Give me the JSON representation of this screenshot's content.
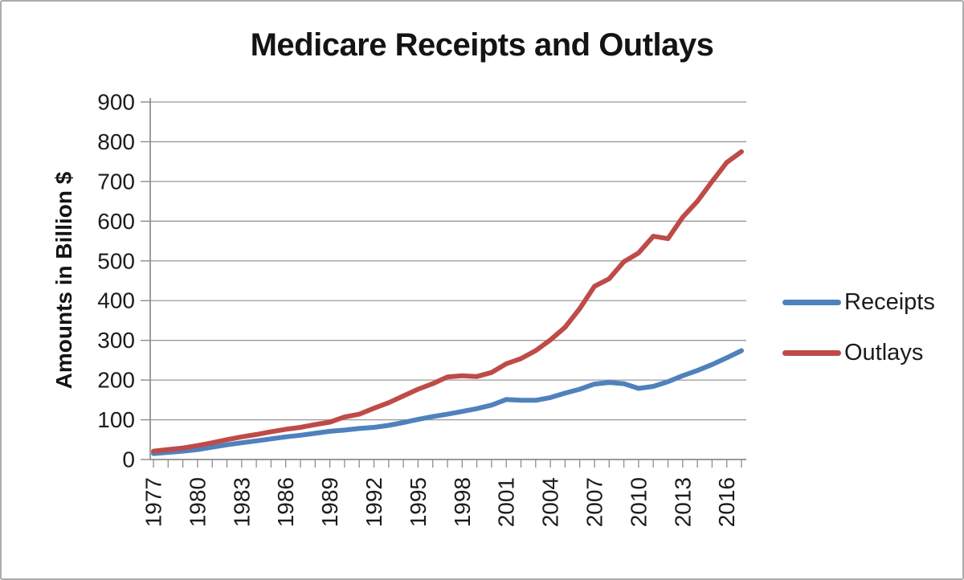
{
  "chart_data": {
    "type": "line",
    "title": "Medicare Receipts and Outlays",
    "xlabel": "",
    "ylabel": "Amounts in Billion $",
    "ylim": [
      0,
      900
    ],
    "yticks": [
      0,
      100,
      200,
      300,
      400,
      500,
      600,
      700,
      800,
      900
    ],
    "xtick_label_years": [
      1977,
      1980,
      1983,
      1986,
      1989,
      1992,
      1995,
      1998,
      2001,
      2004,
      2007,
      2010,
      2013,
      2016
    ],
    "grid": "horizontal",
    "legend_position": "right",
    "x": [
      1977,
      1978,
      1979,
      1980,
      1981,
      1982,
      1983,
      1984,
      1985,
      1986,
      1987,
      1988,
      1989,
      1990,
      1991,
      1992,
      1993,
      1994,
      1995,
      1996,
      1997,
      1998,
      1999,
      2000,
      2001,
      2002,
      2003,
      2004,
      2005,
      2006,
      2007,
      2008,
      2009,
      2010,
      2011,
      2012,
      2013,
      2014,
      2015,
      2016,
      2017
    ],
    "series": [
      {
        "name": "Receipts",
        "color": "#4F81BD",
        "values": [
          15,
          18,
          21,
          25,
          31,
          37,
          42,
          47,
          52,
          57,
          61,
          66,
          71,
          74,
          78,
          81,
          86,
          93,
          101,
          108,
          114,
          121,
          128,
          137,
          151,
          149,
          149,
          156,
          167,
          177,
          190,
          194,
          191,
          179,
          184,
          196,
          211,
          224,
          239,
          256,
          274
        ]
      },
      {
        "name": "Outlays",
        "color": "#BE4B48",
        "values": [
          21,
          25,
          29,
          35,
          42,
          50,
          57,
          63,
          70,
          76,
          81,
          88,
          94,
          107,
          114,
          129,
          143,
          160,
          177,
          191,
          208,
          211,
          209,
          219,
          241,
          254,
          274,
          301,
          333,
          380,
          436,
          455,
          498,
          520,
          562,
          556,
          610,
          650,
          700,
          748,
          775
        ]
      }
    ]
  },
  "colors": {
    "gridline": "#999999",
    "axis": "#8c8c8c",
    "tick": "#8c8c8c",
    "text": "#1c1c1c",
    "border": "#ababab",
    "background": "#ffffff"
  }
}
